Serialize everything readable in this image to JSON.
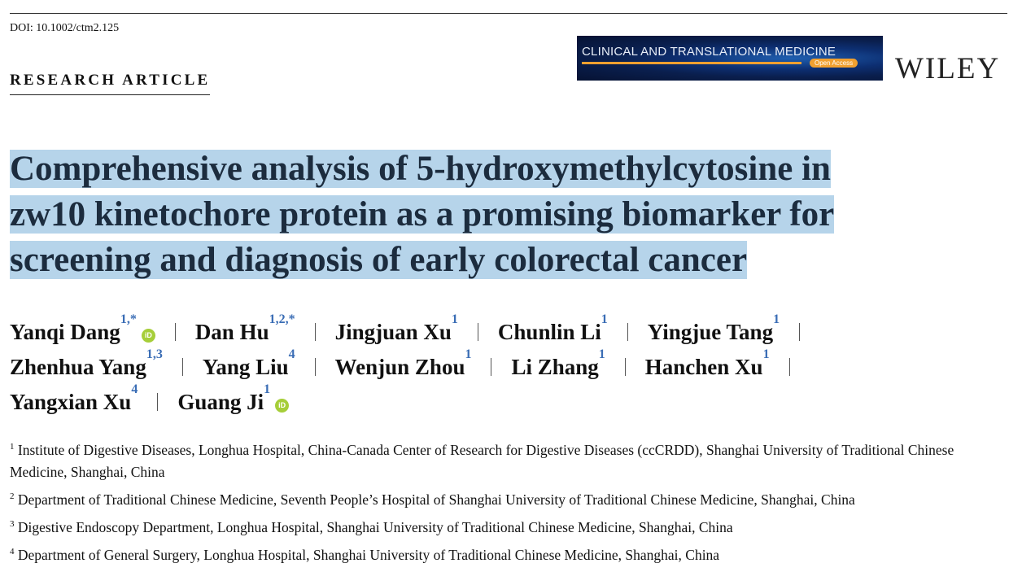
{
  "doi": "DOI: 10.1002/ctm2.125",
  "article_type": "RESEARCH ARTICLE",
  "journal_banner": {
    "title": "CLINICAL AND TRANSLATIONAL MEDICINE",
    "badge": "Open Access"
  },
  "publisher": "WILEY",
  "title_lines": [
    "Comprehensive analysis of 5-hydroxymethylcytosine in",
    "zw10 kinetochore protein as a promising biomarker for",
    "screening and diagnosis of early colorectal cancer"
  ],
  "colors": {
    "title_highlight": "#b6d4ea",
    "superscript": "#3a6db5",
    "orcid": "#a6ce39",
    "title_text": "#1c2c3e"
  },
  "authors": [
    {
      "name": "Yanqi Dang",
      "aff": "1,*",
      "orcid": true
    },
    {
      "name": "Dan Hu",
      "aff": "1,2,*"
    },
    {
      "name": "Jingjuan Xu",
      "aff": "1"
    },
    {
      "name": "Chunlin Li",
      "aff": "1"
    },
    {
      "name": "Yingjue Tang",
      "aff": "1"
    },
    {
      "name": "Zhenhua Yang",
      "aff": "1,3"
    },
    {
      "name": "Yang Liu",
      "aff": "4"
    },
    {
      "name": "Wenjun Zhou",
      "aff": "1"
    },
    {
      "name": "Li Zhang",
      "aff": "1"
    },
    {
      "name": "Hanchen Xu",
      "aff": "1"
    },
    {
      "name": "Yangxian Xu",
      "aff": "4"
    },
    {
      "name": "Guang Ji",
      "aff": "1",
      "orcid": true
    }
  ],
  "orcid_label": "iD",
  "affiliations": [
    {
      "num": "1",
      "text": "Institute of Digestive Diseases, Longhua Hospital, China-Canada Center of Research for Digestive Diseases (ccCRDD), Shanghai University of Traditional Chinese Medicine, Shanghai, China"
    },
    {
      "num": "2",
      "text": "Department of Traditional Chinese Medicine, Seventh People’s Hospital of Shanghai University of Traditional Chinese Medicine, Shanghai, China"
    },
    {
      "num": "3",
      "text": "Digestive Endoscopy Department, Longhua Hospital, Shanghai University of Traditional Chinese Medicine, Shanghai, China"
    },
    {
      "num": "4",
      "text": "Department of General Surgery, Longhua Hospital, Shanghai University of Traditional Chinese Medicine, Shanghai, China"
    }
  ]
}
